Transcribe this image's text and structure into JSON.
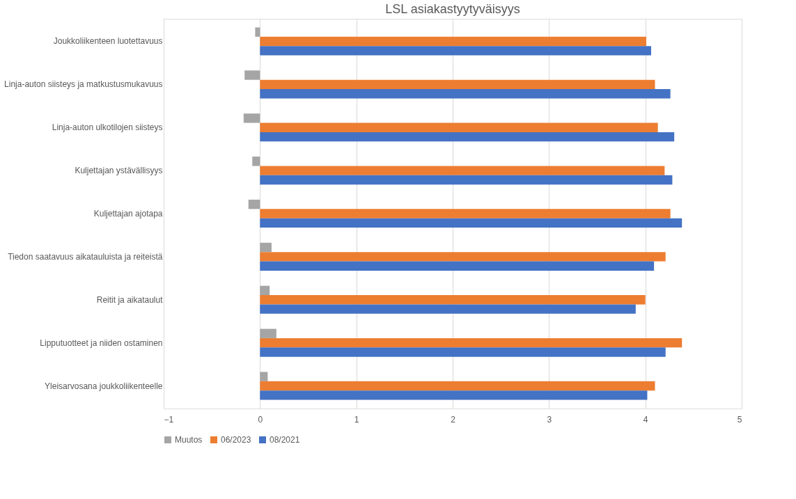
{
  "chart_data": {
    "type": "bar",
    "orientation": "horizontal",
    "title": "LSL asiakastyytyväisyys",
    "categories": [
      "Joukkoliikenteen luotettavuus",
      "Linja-auton siisteys ja matkustusmukavuus",
      "Linja-auton ulkotilojen siisteys",
      "Kuljettajan ystävällisyys",
      "Kuljettajan ajotapa",
      "Tiedon saatavuus aikatauluista ja reiteistä",
      "Reitit ja aikataulut",
      "Lipputuotteet ja niiden ostaminen",
      "Yleisarvosana joukkoliikenteelle"
    ],
    "series": [
      {
        "name": "Muutos",
        "color": "#a5a5a5",
        "values": [
          -0.05,
          -0.16,
          -0.17,
          -0.08,
          -0.12,
          0.12,
          0.1,
          0.17,
          0.08
        ]
      },
      {
        "name": "06/2023",
        "color": "#ed7d31",
        "values": [
          4.01,
          4.1,
          4.13,
          4.2,
          4.26,
          4.21,
          4.0,
          4.38,
          4.1
        ]
      },
      {
        "name": "08/2021",
        "color": "#4472c4",
        "values": [
          4.06,
          4.26,
          4.3,
          4.28,
          4.38,
          4.09,
          3.9,
          4.21,
          4.02
        ]
      }
    ],
    "xlim": [
      -1,
      5
    ],
    "xticks": [
      -1,
      0,
      1,
      2,
      3,
      4,
      5
    ],
    "grid": "x",
    "legend": "bottom"
  }
}
